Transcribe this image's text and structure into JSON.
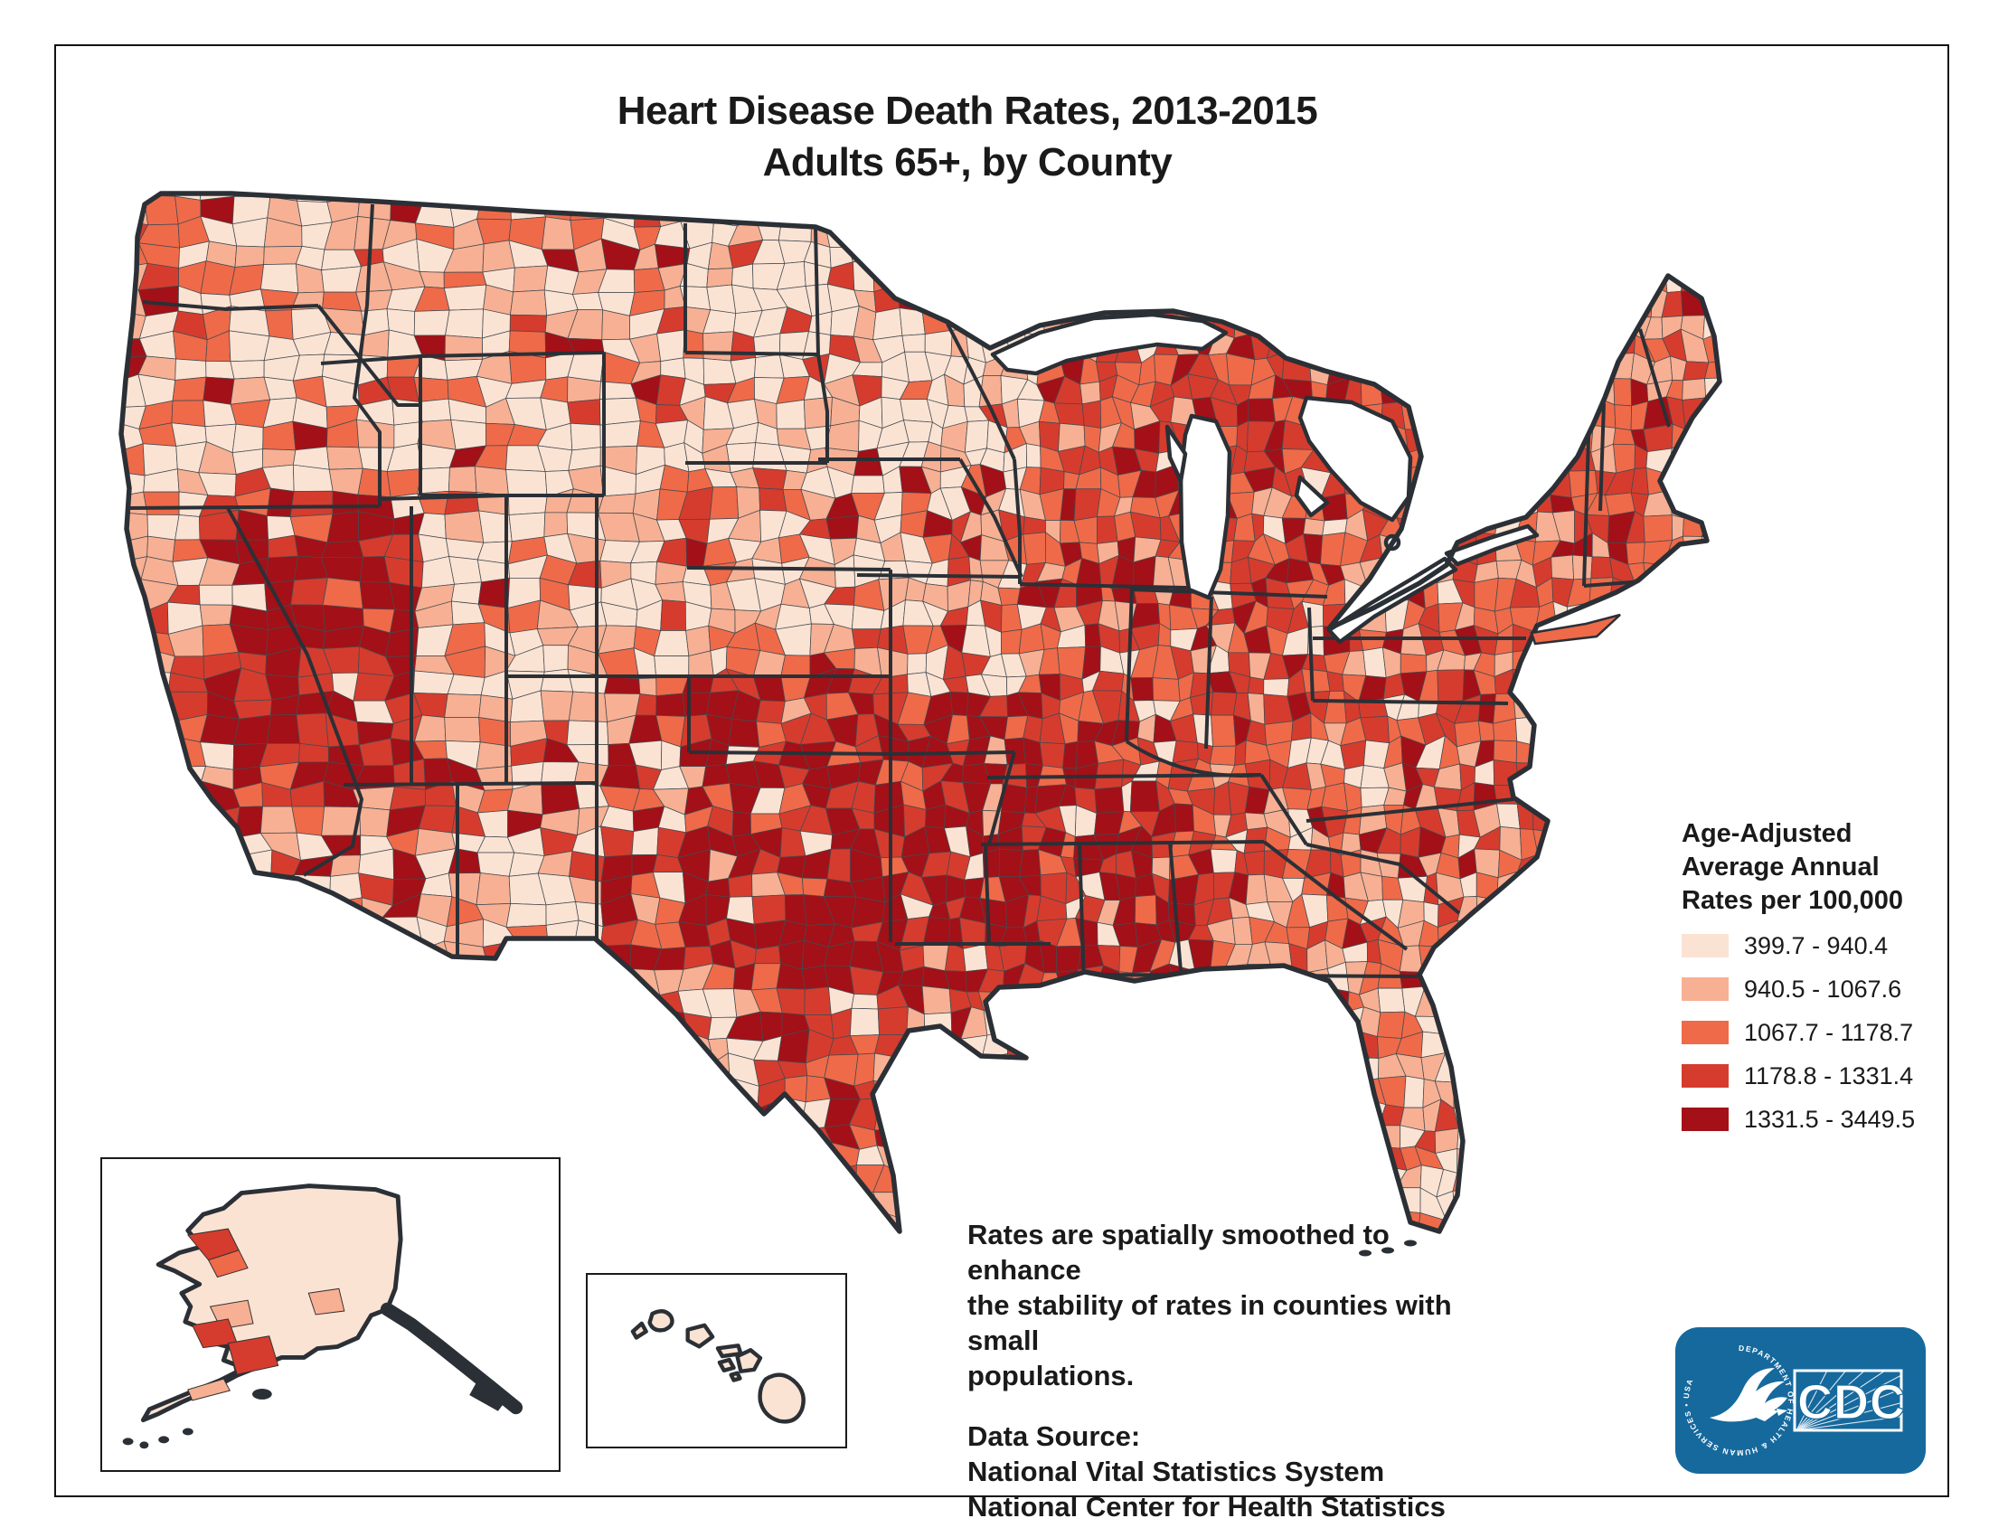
{
  "title": {
    "line1": "Heart Disease Death Rates, 2013-2015",
    "line2": "Adults 65+, by County"
  },
  "legend": {
    "title_lines": [
      "Age-Adjusted",
      "Average Annual",
      "Rates per 100,000"
    ],
    "classes": [
      {
        "label": "399.7 - 940.4",
        "color": "#fbe3d4"
      },
      {
        "label": "940.5 - 1067.6",
        "color": "#f7b093"
      },
      {
        "label": "1067.7 - 1178.7",
        "color": "#ef6a49"
      },
      {
        "label": "1178.8 - 1331.4",
        "color": "#d53c2e"
      },
      {
        "label": "1331.5 - 3449.5",
        "color": "#a31017"
      }
    ]
  },
  "notes": {
    "smoothing": [
      "Rates are spatially smoothed to enhance",
      "the stability of rates in counties with small",
      "populations."
    ],
    "source": [
      "Data Source:",
      "National Vital Statistics System",
      "National Center for Health Statistics"
    ]
  },
  "logo": {
    "cdc": "CDC",
    "ring_text": "DEPARTMENT OF HEALTH & HUMAN SERVICES • USA",
    "color": "#16699d"
  },
  "map": {
    "border_color": "#2b3036",
    "county_line_color": "#454a4f",
    "water_color": "#ffffff"
  }
}
